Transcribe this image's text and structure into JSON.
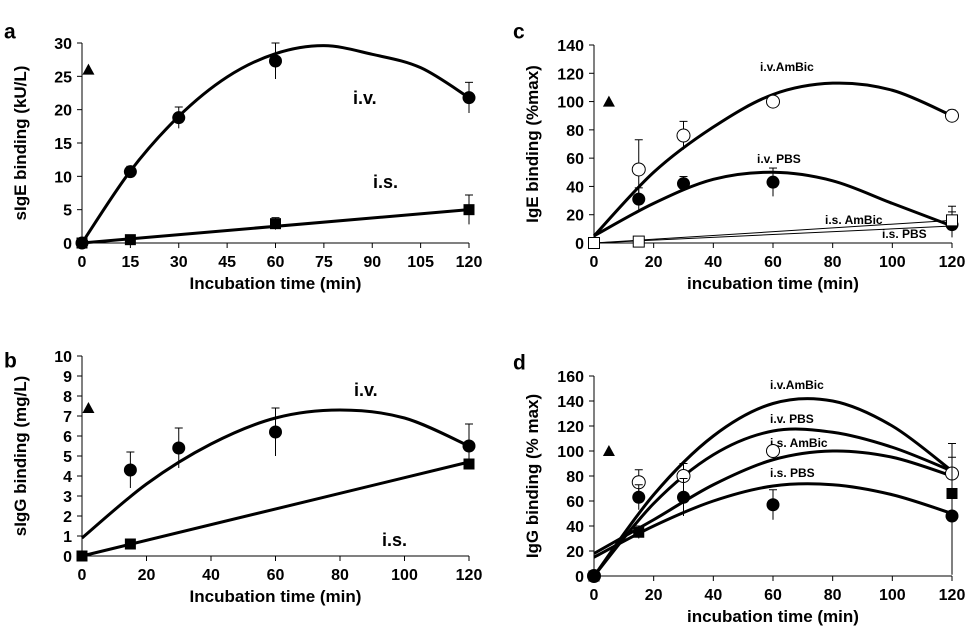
{
  "chart_data": [
    {
      "panel": "a",
      "type": "line",
      "xlabel": "Incubation time (min)",
      "ylabel": "sIgE binding (kU/L)",
      "xlim": [
        0,
        120
      ],
      "ylim": [
        0,
        30
      ],
      "xticks": [
        0,
        15,
        30,
        45,
        60,
        75,
        90,
        105,
        120
      ],
      "yticks": [
        0,
        5,
        10,
        15,
        20,
        25,
        30
      ],
      "grid": false,
      "markers": [
        {
          "shape": "filled-circle",
          "x": [
            0,
            15,
            30,
            60,
            120
          ],
          "y": [
            0,
            10.7,
            18.8,
            27.3,
            21.8
          ],
          "err": [
            0,
            0.8,
            1.6,
            2.7,
            2.3
          ]
        },
        {
          "shape": "filled-square",
          "x": [
            0,
            15,
            60,
            120
          ],
          "y": [
            0,
            0.5,
            2.9,
            5.0
          ],
          "err": [
            0,
            0.4,
            0.9,
            2.2
          ]
        },
        {
          "shape": "filled-triangle",
          "x": [
            2
          ],
          "y": [
            26
          ]
        }
      ],
      "curves": [
        {
          "label": "i.v.",
          "x": [
            0,
            15,
            30,
            45,
            60,
            75,
            90,
            105,
            120
          ],
          "y": [
            0,
            10.8,
            19.0,
            24.9,
            28.4,
            29.6,
            28.3,
            26.3,
            21.8
          ]
        },
        {
          "label": "i.s.",
          "x": [
            0,
            120
          ],
          "y": [
            0,
            5.0
          ]
        }
      ]
    },
    {
      "panel": "b",
      "type": "line",
      "xlabel": "Incubation time (min)",
      "ylabel": "sIgG binding (mg/L)",
      "xlim": [
        0,
        120
      ],
      "ylim": [
        0,
        10
      ],
      "xticks": [
        0,
        20,
        40,
        60,
        80,
        100,
        120
      ],
      "yticks": [
        0,
        1,
        2,
        3,
        4,
        5,
        6,
        7,
        8,
        9,
        10
      ],
      "grid": false,
      "markers": [
        {
          "shape": "filled-circle",
          "x": [
            15,
            30,
            60,
            120
          ],
          "y": [
            4.3,
            5.4,
            6.2,
            5.5
          ],
          "err": [
            0.9,
            1.0,
            1.2,
            1.1
          ]
        },
        {
          "shape": "filled-square",
          "x": [
            0,
            15,
            120
          ],
          "y": [
            0,
            0.6,
            4.6
          ],
          "err": [
            0,
            0,
            0
          ]
        },
        {
          "shape": "filled-triangle",
          "x": [
            2
          ],
          "y": [
            7.4
          ]
        }
      ],
      "curves": [
        {
          "label": "i.v.",
          "x": [
            0,
            20,
            40,
            60,
            80,
            100,
            120
          ],
          "y": [
            0.9,
            3.6,
            5.6,
            6.9,
            7.3,
            6.9,
            5.5
          ]
        },
        {
          "label": "i.s.",
          "x": [
            0,
            120
          ],
          "y": [
            0,
            4.7
          ]
        }
      ]
    },
    {
      "panel": "c",
      "type": "line",
      "xlabel": "incubation time (min)",
      "ylabel": "IgE binding (%max)",
      "xlim": [
        0,
        120
      ],
      "ylim": [
        0,
        140
      ],
      "xticks": [
        0,
        20,
        40,
        60,
        80,
        100,
        120
      ],
      "yticks": [
        0,
        20,
        40,
        60,
        80,
        100,
        120,
        140
      ],
      "grid": false,
      "markers": [
        {
          "shape": "open-circle",
          "x": [
            15,
            30,
            60,
            120
          ],
          "y": [
            52,
            76,
            100,
            90
          ],
          "err": [
            21,
            10,
            0,
            4
          ]
        },
        {
          "shape": "filled-circle",
          "x": [
            15,
            30,
            60,
            120
          ],
          "y": [
            31,
            42,
            43,
            13
          ],
          "err": [
            8,
            5,
            10,
            9
          ]
        },
        {
          "shape": "open-square",
          "x": [
            0,
            15,
            120
          ],
          "y": [
            0,
            1,
            16
          ],
          "err": [
            0,
            0,
            10
          ]
        },
        {
          "shape": "filled-triangle",
          "x": [
            5
          ],
          "y": [
            100
          ]
        }
      ],
      "curves": [
        {
          "label": "i.v.AmBic",
          "x": [
            0,
            20,
            40,
            60,
            80,
            100,
            120
          ],
          "y": [
            5,
            50,
            82,
            105,
            113,
            108,
            90
          ]
        },
        {
          "label": "i.v. PBS",
          "x": [
            0,
            20,
            40,
            60,
            80,
            100,
            120
          ],
          "y": [
            5,
            28,
            45,
            50,
            44,
            28,
            12
          ]
        },
        {
          "label": "i.s. AmBic",
          "x": [
            0,
            120
          ],
          "y": [
            0,
            16
          ]
        },
        {
          "label": "i.s. PBS",
          "x": [
            0,
            120
          ],
          "y": [
            0,
            12
          ]
        }
      ]
    },
    {
      "panel": "d",
      "type": "line",
      "xlabel": "incubation time (min)",
      "ylabel": "IgG binding (% max)",
      "xlim": [
        0,
        120
      ],
      "ylim": [
        0,
        160
      ],
      "xticks": [
        0,
        20,
        40,
        60,
        80,
        100,
        120
      ],
      "yticks": [
        0,
        20,
        40,
        60,
        80,
        100,
        120,
        140,
        160
      ],
      "grid": false,
      "markers": [
        {
          "shape": "open-circle",
          "x": [
            0,
            15,
            30,
            60,
            120
          ],
          "y": [
            0,
            75,
            80,
            100,
            82
          ],
          "err": [
            0,
            10,
            10,
            0,
            0
          ]
        },
        {
          "shape": "filled-circle",
          "x": [
            0,
            15,
            30,
            60,
            120
          ],
          "y": [
            0,
            63,
            63,
            57,
            48
          ],
          "err": [
            0,
            10,
            15,
            12,
            47
          ]
        },
        {
          "shape": "filled-square",
          "x": [
            0,
            15,
            120
          ],
          "y": [
            0,
            35,
            66
          ],
          "err": [
            0,
            5,
            40
          ]
        },
        {
          "shape": "filled-triangle",
          "x": [
            5
          ],
          "y": [
            100
          ]
        }
      ],
      "curves": [
        {
          "label": "i.v.AmBic",
          "x": [
            0,
            20,
            40,
            60,
            80,
            100,
            120
          ],
          "y": [
            0,
            65,
            112,
            138,
            140,
            120,
            84
          ]
        },
        {
          "label": "i.v. PBS",
          "x": [
            0,
            20,
            40,
            60,
            80,
            100,
            120
          ],
          "y": [
            0,
            58,
            97,
            116,
            115,
            103,
            84
          ]
        },
        {
          "label": "i.s. AmBic",
          "x": [
            0,
            20,
            40,
            60,
            80,
            100,
            120
          ],
          "y": [
            18,
            45,
            73,
            93,
            100,
            95,
            80
          ]
        },
        {
          "label": "i.s. PBS",
          "x": [
            0,
            20,
            40,
            60,
            80,
            100,
            120
          ],
          "y": [
            15,
            40,
            60,
            72,
            73,
            65,
            50
          ]
        }
      ]
    }
  ]
}
